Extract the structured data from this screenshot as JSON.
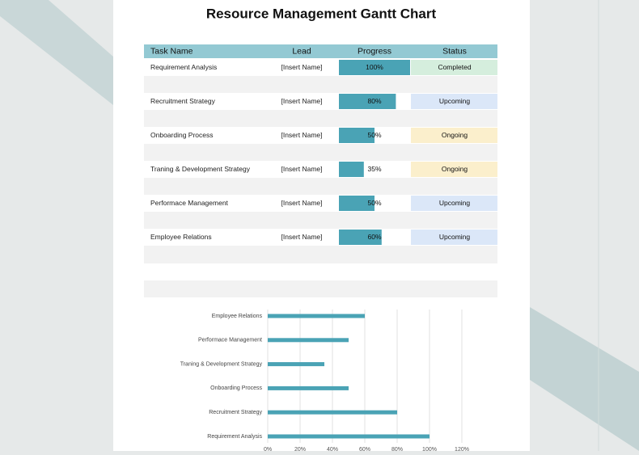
{
  "header": {
    "title": "Resource Management Gantt Chart"
  },
  "table": {
    "columns": [
      "Task Name",
      "Lead",
      "Progress",
      "Status"
    ],
    "rows": [
      {
        "task": "Requirement Analysis",
        "lead": "[Insert Name]",
        "progress": 100,
        "progress_label": "100%",
        "status": "Completed"
      },
      {
        "task": "Recruitment Strategy",
        "lead": "[Insert Name]",
        "progress": 80,
        "progress_label": "80%",
        "status": "Upcoming"
      },
      {
        "task": "Onboarding Process",
        "lead": "[Insert Name]",
        "progress": 50,
        "progress_label": "50%",
        "status": "Ongoing"
      },
      {
        "task": "Traning & Development Strategy",
        "lead": "[Insert Name]",
        "progress": 35,
        "progress_label": "35%",
        "status": "Ongoing"
      },
      {
        "task": "Performace Management",
        "lead": "[Insert Name]",
        "progress": 50,
        "progress_label": "50%",
        "status": "Upcoming"
      },
      {
        "task": "Employee Relations",
        "lead": "[Insert Name]",
        "progress": 60,
        "progress_label": "60%",
        "status": "Upcoming"
      }
    ]
  },
  "chart_data": {
    "type": "bar",
    "orientation": "horizontal",
    "color": "#4aa3b5",
    "grid": true,
    "categories": [
      "Requirement Analysis",
      "Recruitment Strategy",
      "Onboarding Process",
      "Traning & Development Strategy",
      "Performace Management",
      "Employee Relations"
    ],
    "values": [
      100,
      80,
      50,
      35,
      50,
      60
    ],
    "xlim": [
      0,
      120
    ],
    "xticks": [
      {
        "value": 0,
        "label": "0%"
      },
      {
        "value": 20,
        "label": "20%"
      },
      {
        "value": 40,
        "label": "40%"
      },
      {
        "value": 60,
        "label": "60%"
      },
      {
        "value": 80,
        "label": "80%"
      },
      {
        "value": 100,
        "label": "100%"
      },
      {
        "value": 120,
        "label": "120%"
      }
    ]
  }
}
